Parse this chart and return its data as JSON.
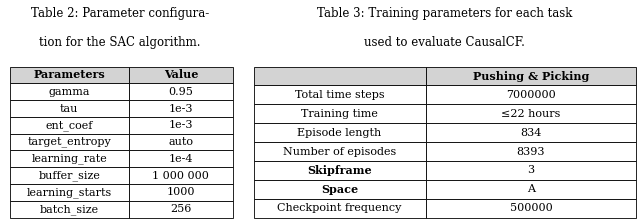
{
  "table2_caption_line1": "Table 2: Parameter configura-",
  "table2_caption_line2": "tion for the SAC algorithm.",
  "table2_headers": [
    "Parameters",
    "Value"
  ],
  "table2_rows": [
    [
      "gamma",
      "0.95"
    ],
    [
      "tau",
      "1e-3"
    ],
    [
      "ent_coef",
      "1e-3"
    ],
    [
      "target_entropy",
      "auto"
    ],
    [
      "learning_rate",
      "1e-4"
    ],
    [
      "buffer_size",
      "1 000 000"
    ],
    [
      "learning_starts",
      "1000"
    ],
    [
      "batch_size",
      "256"
    ]
  ],
  "table3_caption_line1": "Table 3: Training parameters for each task",
  "table3_caption_line2": "used to evaluate CausalCF.",
  "table3_headers": [
    "",
    "Pushing & Picking"
  ],
  "table3_rows": [
    [
      "Total time steps",
      "7000000",
      false
    ],
    [
      "Training time",
      "≤22 hours",
      false
    ],
    [
      "Episode length",
      "834",
      false
    ],
    [
      "Number of episodes",
      "8393",
      false
    ],
    [
      "Skipframe",
      "3",
      true
    ],
    [
      "Space",
      "A",
      true
    ],
    [
      "Checkpoint frequency",
      "500000",
      false
    ]
  ],
  "table3_bold_rows": [
    4,
    5
  ],
  "font_size": 8.0,
  "caption_font_size": 8.5,
  "background_color": "#ffffff",
  "line_color": "#000000",
  "header_bg": "#d3d3d3",
  "cell_bg": "#ffffff"
}
